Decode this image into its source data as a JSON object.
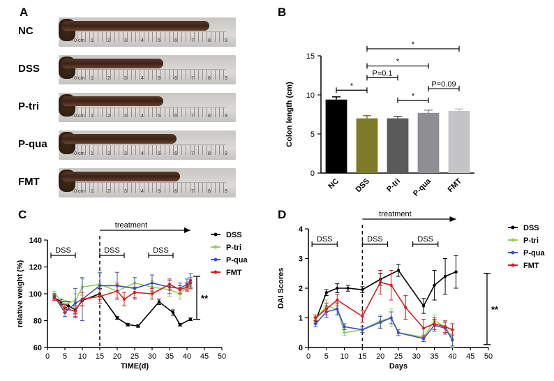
{
  "panels": {
    "A": {
      "letter": "A",
      "rows": [
        {
          "label": "NC",
          "length": 0.9
        },
        {
          "label": "DSS",
          "length": 0.62
        },
        {
          "label": "P-tri",
          "length": 0.62
        },
        {
          "label": "P-qua",
          "length": 0.7
        },
        {
          "label": "FMT",
          "length": 0.72
        }
      ],
      "ruler_ticks": [
        "0 cm",
        "1",
        "2",
        "3",
        "4",
        "5",
        "6",
        "7",
        "8",
        "9"
      ]
    },
    "B": {
      "letter": "B"
    },
    "C": {
      "letter": "C"
    },
    "D": {
      "letter": "D"
    }
  },
  "chart_data": [
    {
      "id": "B",
      "type": "bar",
      "categories": [
        "NC",
        "DSS",
        "P-tri",
        "P-qua",
        "FMT"
      ],
      "values": [
        9.4,
        7.0,
        7.0,
        7.7,
        7.95
      ],
      "errors": [
        0.35,
        0.35,
        0.25,
        0.35,
        0.25
      ],
      "colors": [
        "#000000",
        "#7d7a2a",
        "#5a5a5a",
        "#8f8f93",
        "#c4c4c6"
      ],
      "ylabel": "Colon length (cm)",
      "ylim": [
        0,
        15
      ],
      "yticks": [
        0,
        5,
        10,
        15
      ],
      "annotations": [
        {
          "from": 0,
          "to": 1,
          "text": "*",
          "y": 10.6
        },
        {
          "from": 1,
          "to": 2,
          "text": "P=0.1",
          "y": 12.2
        },
        {
          "from": 2,
          "to": 3,
          "text": "*",
          "y": 9.3
        },
        {
          "from": 3,
          "to": 4,
          "text": "P=0.09",
          "y": 10.8
        },
        {
          "from": 1,
          "to": 3,
          "text": "*",
          "y": 13.7
        },
        {
          "from": 1,
          "to": 4,
          "text": "*",
          "y": 15.9
        }
      ]
    },
    {
      "id": "C",
      "type": "line",
      "xlabel": "TIME(d)",
      "ylabel": "relative weight (%)",
      "xlim": [
        0,
        50
      ],
      "ylim": [
        60,
        140
      ],
      "xticks": [
        0,
        5,
        10,
        15,
        20,
        25,
        30,
        35,
        40,
        45,
        50
      ],
      "yticks": [
        60,
        80,
        100,
        120,
        140
      ],
      "dss_bars": [
        {
          "label": "DSS",
          "from": 1,
          "to": 8
        },
        {
          "label": "DSS",
          "from": 15,
          "to": 22
        },
        {
          "label": "DSS",
          "from": 29,
          "to": 36
        }
      ],
      "treatment_label": "treatment",
      "treatment_from": 15,
      "treatment_to": 41,
      "divider_x": 15,
      "significance": {
        "text": "**",
        "y_from": 81,
        "y_to": 113
      },
      "series": [
        {
          "name": "DSS",
          "color": "#000000",
          "x": [
            2,
            4,
            5,
            6,
            8,
            10,
            15,
            20,
            23,
            26,
            32,
            36,
            38,
            41
          ],
          "y": [
            97,
            94,
            92,
            91,
            88,
            95,
            100,
            82,
            77,
            76,
            94,
            86,
            77,
            81
          ],
          "err": [
            1,
            2,
            2,
            3,
            3,
            4,
            4,
            1,
            1,
            1,
            2,
            2,
            1,
            1
          ]
        },
        {
          "name": "P-tri",
          "color": "#8fd14f",
          "x": [
            2,
            5,
            8,
            10,
            15,
            20,
            25,
            30,
            35,
            38,
            40,
            41
          ],
          "y": [
            100,
            92,
            95,
            105,
            107,
            102,
            108,
            105,
            103,
            100,
            105,
            106
          ],
          "err": [
            2,
            3,
            5,
            6,
            8,
            5,
            4,
            5,
            5,
            4,
            3,
            3
          ]
        },
        {
          "name": "P-qua",
          "color": "#3b4fc7",
          "x": [
            2,
            5,
            8,
            10,
            15,
            20,
            25,
            30,
            35,
            38,
            40,
            41
          ],
          "y": [
            98,
            86,
            93,
            96,
            106,
            106,
            104,
            108,
            105,
            104,
            107,
            110
          ],
          "err": [
            2,
            3,
            11,
            16,
            10,
            10,
            8,
            6,
            5,
            4,
            4,
            5
          ]
        },
        {
          "name": "FMT",
          "color": "#d81e1e",
          "x": [
            2,
            5,
            8,
            10,
            15,
            20,
            22,
            25,
            30,
            35,
            38,
            40,
            41
          ],
          "y": [
            97,
            89,
            87,
            96,
            98,
            102,
            96,
            101,
            100,
            107,
            103,
            105,
            108
          ],
          "err": [
            2,
            3,
            4,
            5,
            5,
            6,
            5,
            4,
            4,
            4,
            3,
            3,
            4
          ]
        }
      ]
    },
    {
      "id": "D",
      "type": "line",
      "xlabel": "Days",
      "ylabel": "DAI Scores",
      "xlim": [
        0,
        50
      ],
      "ylim": [
        0,
        4
      ],
      "xticks": [
        0,
        5,
        10,
        15,
        20,
        25,
        30,
        35,
        40,
        45,
        50
      ],
      "yticks": [
        0,
        1,
        2,
        3,
        4
      ],
      "dss_bars": [
        {
          "label": "DSS",
          "from": 1,
          "to": 8
        },
        {
          "label": "DSS",
          "from": 15,
          "to": 22
        },
        {
          "label": "DSS",
          "from": 29,
          "to": 36
        }
      ],
      "treatment_label": "treatment",
      "treatment_from": 15,
      "treatment_to": 41,
      "divider_x": 15,
      "significance": {
        "text": "**",
        "y_from": 0.1,
        "y_to": 2.5
      },
      "series": [
        {
          "name": "DSS",
          "color": "#000000",
          "x": [
            2,
            5,
            8,
            11,
            15,
            20,
            25,
            32,
            35,
            38,
            41
          ],
          "y": [
            0.9,
            1.85,
            2.0,
            2.0,
            1.95,
            2.3,
            2.6,
            1.4,
            2.1,
            2.4,
            2.55
          ],
          "err": [
            0.1,
            0.1,
            0.15,
            0.1,
            0.1,
            0.2,
            0.2,
            0.25,
            0.5,
            0.6,
            0.55
          ]
        },
        {
          "name": "P-tri",
          "color": "#8fd14f",
          "x": [
            2,
            5,
            8,
            10,
            15,
            20,
            23,
            25,
            32,
            35,
            38,
            40
          ],
          "y": [
            0.95,
            1.4,
            1.3,
            0.5,
            0.6,
            0.9,
            1.0,
            0.5,
            0.35,
            0.9,
            0.7,
            0.3
          ],
          "err": [
            0.1,
            0.2,
            0.2,
            0.1,
            0.1,
            0.2,
            0.3,
            0.1,
            0.1,
            0.2,
            0.2,
            0.3
          ]
        },
        {
          "name": "P-qua",
          "color": "#3b4fc7",
          "x": [
            2,
            5,
            8,
            10,
            15,
            20,
            23,
            25,
            32,
            35,
            38,
            40
          ],
          "y": [
            0.8,
            1.2,
            1.3,
            0.7,
            0.6,
            0.85,
            1.0,
            0.5,
            0.3,
            0.75,
            0.65,
            0.25
          ],
          "err": [
            0.1,
            0.2,
            0.2,
            0.1,
            0.1,
            0.2,
            0.2,
            0.1,
            0.1,
            0.2,
            0.2,
            0.2
          ]
        },
        {
          "name": "FMT",
          "color": "#d81e1e",
          "x": [
            2,
            5,
            8,
            15,
            20,
            23,
            27,
            32,
            35,
            38,
            40
          ],
          "y": [
            1.0,
            1.3,
            1.6,
            1.05,
            2.2,
            2.1,
            1.35,
            0.65,
            0.8,
            0.7,
            0.6
          ],
          "err": [
            0.1,
            0.2,
            0.2,
            0.2,
            0.4,
            0.5,
            0.4,
            0.3,
            0.2,
            0.2,
            0.2
          ]
        }
      ]
    }
  ]
}
